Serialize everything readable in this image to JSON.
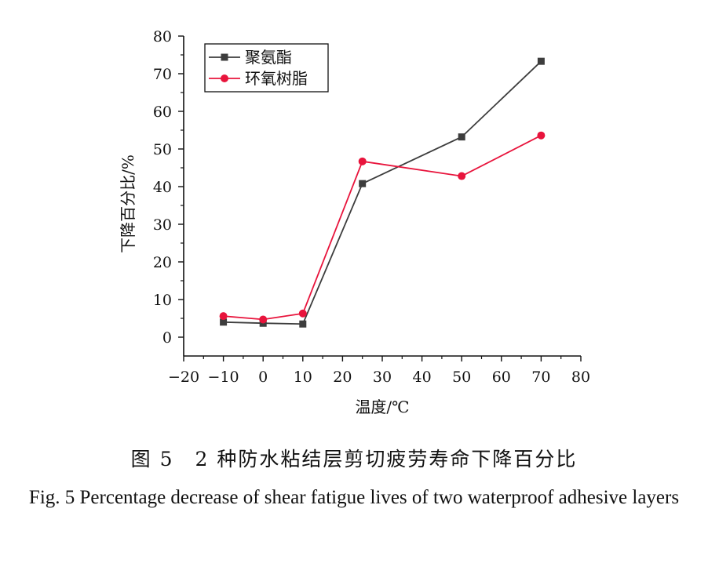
{
  "chart_data": {
    "type": "line",
    "xlabel": "温度/℃",
    "ylabel": "下降百分比/%",
    "xlim": [
      -20,
      80
    ],
    "ylim": [
      -5,
      80
    ],
    "xticks": [
      -20,
      -10,
      0,
      10,
      20,
      30,
      40,
      50,
      60,
      70,
      80
    ],
    "yticks": [
      0,
      10,
      20,
      30,
      40,
      50,
      60,
      70,
      80
    ],
    "x_tick_labels": [
      "−20",
      "−10",
      "0",
      "10",
      "20",
      "30",
      "40",
      "50",
      "60",
      "70",
      "80"
    ],
    "y_tick_labels": [
      "0",
      "10",
      "20",
      "30",
      "40",
      "50",
      "60",
      "70",
      "80"
    ],
    "legend_position": "top-left",
    "series": [
      {
        "name": "聚氨酯",
        "color": "#3d3d3d",
        "marker": "square",
        "x": [
          -10,
          0,
          10,
          25,
          50,
          70
        ],
        "y": [
          4.0,
          3.7,
          3.5,
          40.8,
          53.2,
          73.3
        ]
      },
      {
        "name": "环氧树脂",
        "color": "#e8143c",
        "marker": "circle",
        "x": [
          -10,
          0,
          10,
          25,
          50,
          70
        ],
        "y": [
          5.6,
          4.7,
          6.3,
          46.7,
          42.8,
          53.6
        ]
      }
    ]
  },
  "caption": {
    "cn": "图 5　2 种防水粘结层剪切疲劳寿命下降百分比",
    "en": "Fig. 5 Percentage decrease of shear fatigue lives of two waterproof adhesive layers"
  }
}
